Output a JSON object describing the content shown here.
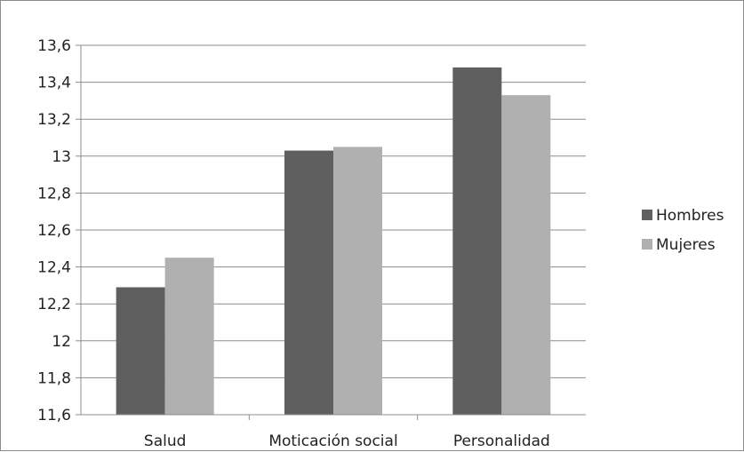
{
  "chart_data": {
    "type": "bar",
    "title": "",
    "xlabel": "",
    "ylabel": "",
    "categories": [
      "Salud",
      "Moticación social",
      "Personalidad"
    ],
    "series": [
      {
        "name": "Hombres",
        "color": "#5f5f5f",
        "values": [
          12.29,
          13.03,
          13.48
        ]
      },
      {
        "name": "Mujeres",
        "color": "#b0b0b0",
        "values": [
          12.45,
          13.05,
          13.33
        ]
      }
    ],
    "ylim": [
      11.6,
      13.6
    ],
    "yticks": [
      "11,6",
      "11,8",
      "12",
      "12,2",
      "12,4",
      "12,6",
      "12,8",
      "13",
      "13,2",
      "13,4",
      "13,6"
    ],
    "grid": true,
    "legend_position": "right"
  }
}
